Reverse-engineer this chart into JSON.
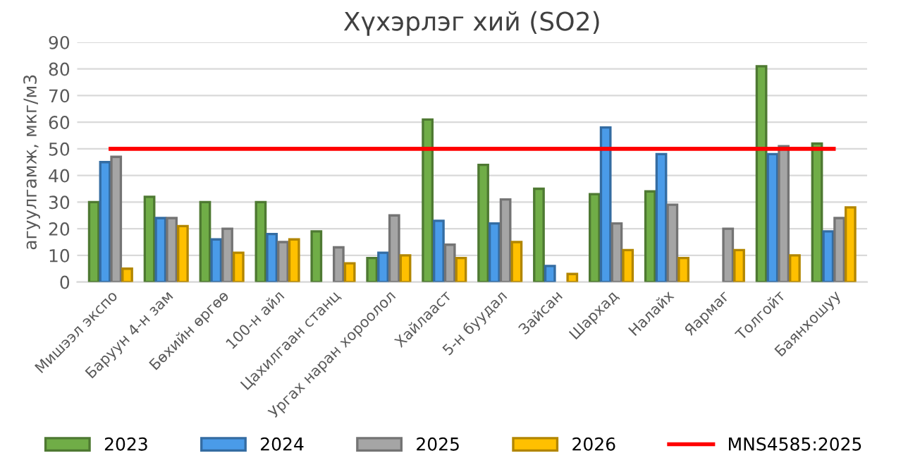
{
  "chart_data": {
    "type": "bar",
    "title": "Хүхэрлэг хий (SO2)",
    "ylabel": "агуулгамж, мкг/м3",
    "categories": [
      "Мишээл экспо",
      "Баруун 4-н зам",
      "Бөхийн өргөө",
      "100-н айл",
      "Цахилгаан станц",
      "Ургах наран хороолол",
      "Хайлааст",
      "5-н буудал",
      "Зайсан",
      "Шархад",
      "Налайх",
      "Яармаг",
      "Толгойт",
      "Баянхошуу"
    ],
    "series": [
      {
        "name": "2023",
        "color": "#70ad47",
        "values": [
          30,
          32,
          30,
          30,
          19,
          9,
          61,
          44,
          35,
          33,
          34,
          null,
          81,
          52
        ]
      },
      {
        "name": "2024",
        "color": "#4a9be8",
        "values": [
          45,
          24,
          16,
          18,
          null,
          11,
          23,
          22,
          6,
          58,
          48,
          null,
          48,
          19
        ]
      },
      {
        "name": "2025",
        "color": "#a5a5a5",
        "values": [
          47,
          24,
          20,
          15,
          13,
          25,
          14,
          31,
          null,
          22,
          29,
          20,
          51,
          24
        ]
      },
      {
        "name": "2026",
        "color": "#ffc000",
        "values": [
          5,
          21,
          11,
          16,
          7,
          10,
          9,
          15,
          3,
          12,
          9,
          12,
          10,
          28
        ]
      },
      {
        "name": "MNS4585:2025",
        "type": "line",
        "color": "#ff0000",
        "values": [
          50,
          50,
          50,
          50,
          50,
          50,
          50,
          50,
          50,
          50,
          50,
          50,
          50,
          50
        ]
      }
    ],
    "ylim": [
      0,
      90
    ],
    "yticks": [
      0,
      10,
      20,
      30,
      40,
      50,
      60,
      70,
      80,
      90
    ],
    "grid": "y",
    "legend": "bottom"
  }
}
